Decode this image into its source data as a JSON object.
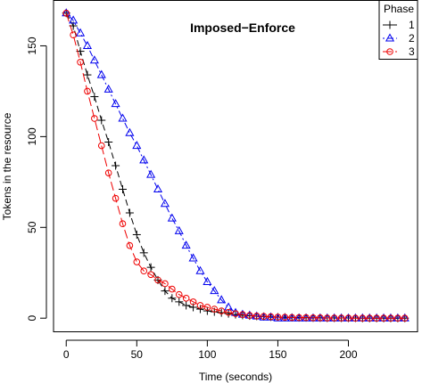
{
  "chart_data": {
    "type": "line",
    "title": "Imposed−Enforce",
    "xlabel": "Time (seconds)",
    "ylabel": "Tokens in the resource",
    "xlim": [
      -9,
      249
    ],
    "ylim": [
      -7.5,
      175
    ],
    "x_ticks": [
      0,
      50,
      100,
      150,
      200
    ],
    "y_ticks": [
      0,
      50,
      100,
      150
    ],
    "grid": false,
    "legend": {
      "title": "Phase",
      "position": "top-right"
    },
    "series": [
      {
        "name": "1",
        "color": "#000000",
        "marker": "plus",
        "line_style": "dashed",
        "x": [
          0,
          5,
          10,
          15,
          20,
          25,
          30,
          35,
          40,
          45,
          50,
          55,
          60,
          65,
          70,
          75,
          80,
          85,
          90,
          95,
          100,
          105,
          110,
          115,
          120,
          125,
          130,
          135,
          140,
          145,
          150,
          155,
          160,
          165,
          170,
          175,
          180,
          185,
          190,
          195,
          200,
          205,
          210,
          215,
          220,
          225,
          230,
          235,
          240
        ],
        "values": [
          168,
          161,
          147,
          134,
          122,
          109,
          97,
          84,
          71,
          58,
          46,
          36,
          28,
          21,
          15,
          11,
          9,
          7,
          6,
          5,
          4,
          3.5,
          3,
          2.5,
          2,
          1.6,
          1.3,
          1.1,
          0.9,
          0.7,
          0.6,
          0.5,
          0.4,
          0.3,
          0.3,
          0.2,
          0.2,
          0.1,
          0.1,
          0.1,
          0.1,
          0.1,
          0,
          0,
          0,
          0,
          0,
          0,
          0
        ]
      },
      {
        "name": "2",
        "color": "#0000ee",
        "marker": "triangle",
        "line_style": "dotdash",
        "x": [
          0,
          5,
          10,
          15,
          20,
          25,
          30,
          35,
          40,
          45,
          50,
          55,
          60,
          65,
          70,
          75,
          80,
          85,
          90,
          95,
          100,
          105,
          110,
          115,
          120,
          125,
          130,
          135,
          140,
          145,
          150,
          155,
          160,
          165,
          170,
          175,
          180,
          185,
          190,
          195,
          200,
          205,
          210,
          215,
          220,
          225,
          230,
          235,
          240
        ],
        "values": [
          168,
          164,
          157,
          150,
          142,
          134,
          126,
          118,
          110,
          102,
          95,
          87,
          79,
          71,
          63,
          55,
          48,
          40,
          33,
          26,
          20,
          15,
          10,
          6,
          3,
          2,
          1.5,
          1,
          0.5,
          0.5,
          0,
          0,
          0,
          0,
          0,
          0,
          0,
          0,
          0,
          0,
          0,
          0,
          0,
          0,
          0,
          0,
          0,
          0,
          0
        ]
      },
      {
        "name": "3",
        "color": "#ee0000",
        "marker": "circle",
        "line_style": "longdash",
        "x": [
          0,
          5,
          10,
          15,
          20,
          25,
          30,
          35,
          40,
          45,
          50,
          55,
          60,
          65,
          70,
          75,
          80,
          85,
          90,
          95,
          100,
          105,
          110,
          115,
          120,
          125,
          130,
          135,
          140,
          145,
          150,
          155,
          160,
          165,
          170,
          175,
          180,
          185,
          190,
          195,
          200,
          205,
          210,
          215,
          220,
          225,
          230,
          235,
          240
        ],
        "values": [
          168,
          156,
          141,
          125,
          110,
          95,
          80,
          66,
          52,
          40,
          31,
          26,
          24,
          21,
          19,
          16,
          13,
          11,
          9,
          7,
          6,
          5,
          4,
          3.2,
          2.5,
          2,
          1.5,
          1.2,
          1,
          0.8,
          0.6,
          0.5,
          0.4,
          0.3,
          0.3,
          0.2,
          0.2,
          0.1,
          0.1,
          0.1,
          0.1,
          0,
          0,
          0,
          0,
          0,
          0,
          0,
          0
        ]
      }
    ]
  }
}
